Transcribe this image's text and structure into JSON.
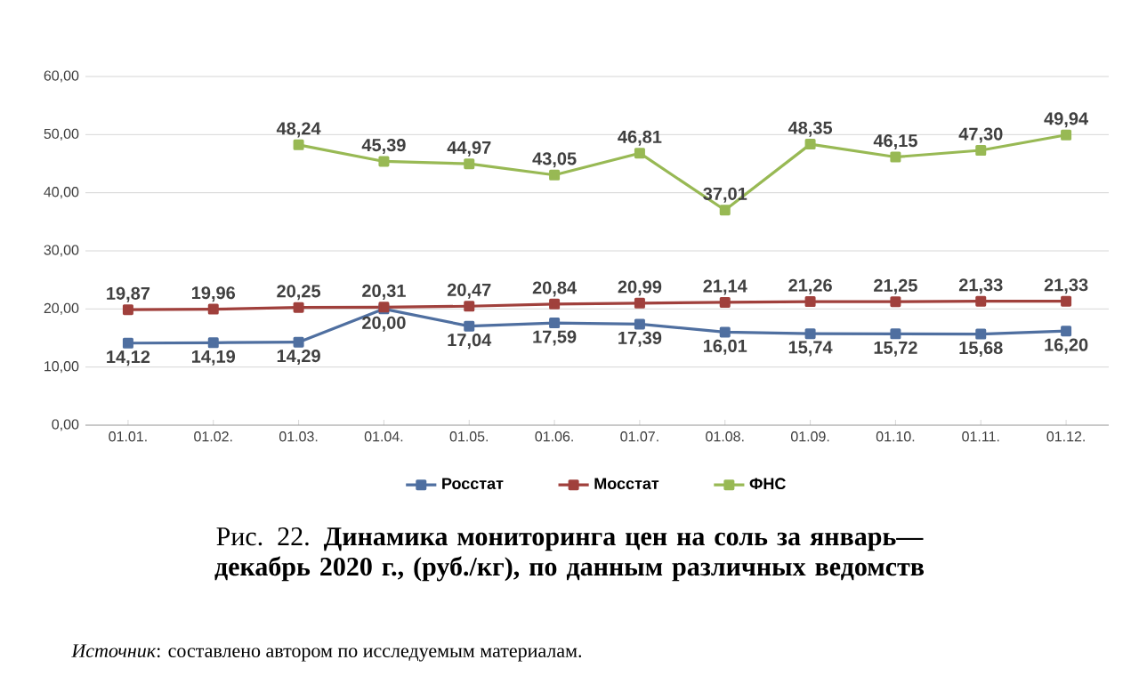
{
  "chart_data": {
    "type": "line",
    "title": "Рис. 22. **Динамика мониторинга цен на соль за январь—декабрь 2020 г., (руб./кг), по данным различных ведомств**",
    "annotations": [
      "*Источник*: составлено автором по исследуемым материалам."
    ],
    "categories": [
      "01.01.",
      "01.02.",
      "01.03.",
      "01.04.",
      "01.05.",
      "01.06.",
      "01.07.",
      "01.08.",
      "01.09.",
      "01.10.",
      "01.11.",
      "01.12."
    ],
    "series": [
      {
        "name": "Росстат",
        "color": "#4f6fa0",
        "values": [
          14.12,
          14.19,
          14.29,
          20.0,
          17.04,
          17.59,
          17.39,
          16.01,
          15.74,
          15.72,
          15.68,
          16.2
        ],
        "value_labels": [
          "14,12",
          "14,19",
          "14,29",
          "20,00",
          "17,04",
          "17,59",
          "17,39",
          "16,01",
          "15,74",
          "15,72",
          "15,68",
          "16,20"
        ]
      },
      {
        "name": "Мосстат",
        "color": "#a0403c",
        "values": [
          19.87,
          19.96,
          20.25,
          20.31,
          20.47,
          20.84,
          20.99,
          21.14,
          21.26,
          21.25,
          21.33,
          21.33
        ],
        "value_labels": [
          "19,87",
          "19,96",
          "20,25",
          "20,31",
          "20,47",
          "20,84",
          "20,99",
          "21,14",
          "21,26",
          "21,25",
          "21,33",
          "21,33"
        ]
      },
      {
        "name": "ФНС",
        "color": "#98b954",
        "values": [
          null,
          null,
          48.24,
          45.39,
          44.97,
          43.05,
          46.81,
          37.01,
          48.35,
          46.15,
          47.3,
          49.94
        ],
        "value_labels": [
          null,
          null,
          "48,24",
          "45,39",
          "44,97",
          "43,05",
          "46,81",
          "37,01",
          "48,35",
          "46,15",
          "47,30",
          "49,94"
        ]
      }
    ],
    "ylim": [
      0,
      60
    ],
    "yticks": [
      {
        "value": 0,
        "label": "0,00"
      },
      {
        "value": 10,
        "label": "10,00"
      },
      {
        "value": 20,
        "label": "20,00"
      },
      {
        "value": 30,
        "label": "30,00"
      },
      {
        "value": 40,
        "label": "40,00"
      },
      {
        "value": 50,
        "label": "50,00"
      },
      {
        "value": 60,
        "label": "60,00"
      }
    ],
    "grid": "y",
    "legend": "bottom",
    "marker": "square",
    "line_style": "solid"
  }
}
